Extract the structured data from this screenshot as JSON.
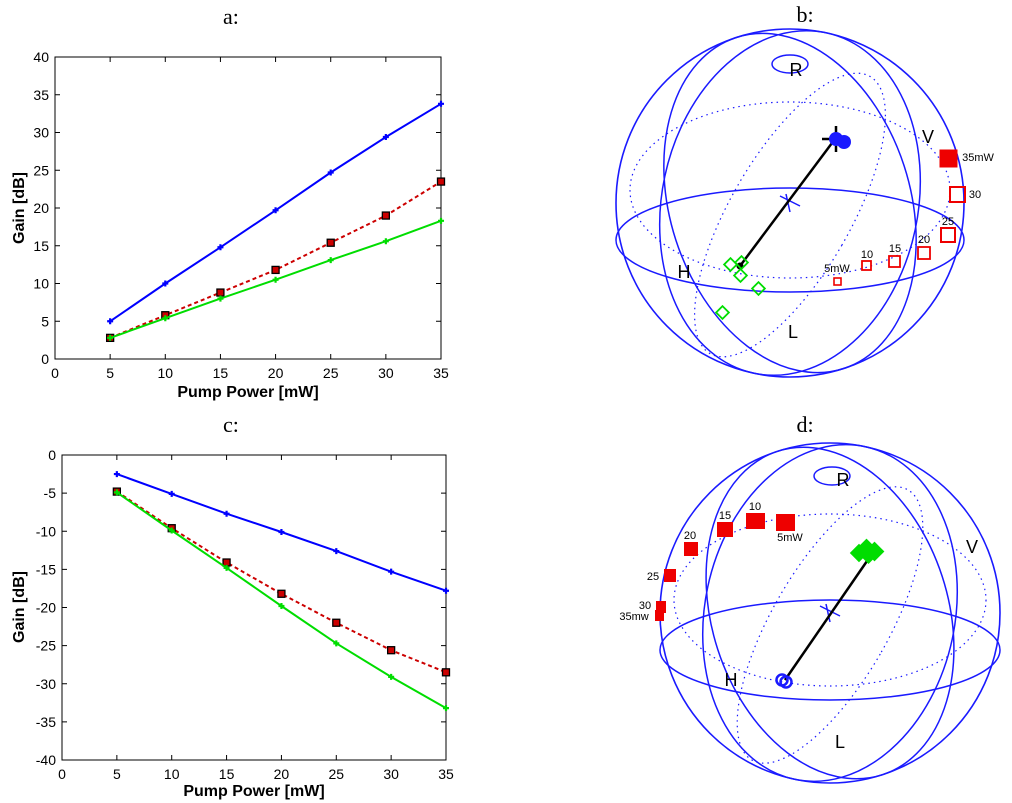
{
  "panel_titles": {
    "a": "a:",
    "b": "b:",
    "c": "c:",
    "d": "d:"
  },
  "chart_data": [
    {
      "panel": "a",
      "type": "line",
      "title": "a:",
      "xlabel": "Pump Power [mW]",
      "ylabel": "Gain [dB]",
      "xlim": [
        0,
        35
      ],
      "ylim": [
        0,
        40
      ],
      "xticks": [
        "0",
        "5",
        "10",
        "15",
        "20",
        "25",
        "30",
        "35"
      ],
      "yticks": [
        "0",
        "5",
        "10",
        "15",
        "20",
        "25",
        "30",
        "35",
        "40"
      ],
      "grid": false,
      "x": [
        5,
        10,
        15,
        20,
        25,
        30,
        35
      ],
      "series": [
        {
          "color": "#0000ff",
          "style": "solid",
          "marker": "plus",
          "values": [
            5.0,
            10.0,
            14.8,
            19.7,
            24.7,
            29.4,
            33.8
          ]
        },
        {
          "color": "#cc0000",
          "style": "dashed",
          "marker": "square",
          "values": [
            2.8,
            5.8,
            8.8,
            11.8,
            15.4,
            19.0,
            23.5
          ]
        },
        {
          "color": "#00dd00",
          "style": "solid",
          "marker": "plus",
          "values": [
            2.8,
            5.4,
            8.0,
            10.5,
            13.1,
            15.6,
            18.3
          ]
        }
      ]
    },
    {
      "panel": "b",
      "type": "scatter",
      "title": "b:",
      "pole_labels": {
        "R": "R",
        "L": "L",
        "H": "H",
        "V": "V"
      },
      "point_labels": [
        "5mW",
        "10",
        "15",
        "20",
        "25",
        "30",
        "35mW"
      ]
    },
    {
      "panel": "c",
      "type": "line",
      "title": "c:",
      "xlabel": "Pump Power [mW]",
      "ylabel": "Gain [dB]",
      "xlim": [
        0,
        35
      ],
      "ylim": [
        -40,
        0
      ],
      "xticks": [
        "0",
        "5",
        "10",
        "15",
        "20",
        "25",
        "30",
        "35"
      ],
      "yticks": [
        "-40",
        "-35",
        "-30",
        "-25",
        "-20",
        "-15",
        "-10",
        "-5",
        "0"
      ],
      "grid": false,
      "x": [
        5,
        10,
        15,
        20,
        25,
        30,
        35
      ],
      "series": [
        {
          "color": "#0000ff",
          "style": "solid",
          "marker": "plus",
          "values": [
            -2.5,
            -5.1,
            -7.7,
            -10.1,
            -12.6,
            -15.3,
            -17.8
          ]
        },
        {
          "color": "#cc0000",
          "style": "dashed",
          "marker": "square",
          "values": [
            -4.8,
            -9.6,
            -14.1,
            -18.2,
            -22.0,
            -25.6,
            -28.5
          ]
        },
        {
          "color": "#00dd00",
          "style": "solid",
          "marker": "plus",
          "values": [
            -4.9,
            -9.9,
            -14.8,
            -19.8,
            -24.7,
            -29.1,
            -33.2
          ]
        }
      ]
    },
    {
      "panel": "d",
      "type": "scatter",
      "title": "d:",
      "pole_labels": {
        "R": "R",
        "L": "L",
        "H": "H",
        "V": "V"
      },
      "point_labels": [
        "5mW",
        "10",
        "15",
        "20",
        "25",
        "30",
        "35mw"
      ]
    }
  ]
}
